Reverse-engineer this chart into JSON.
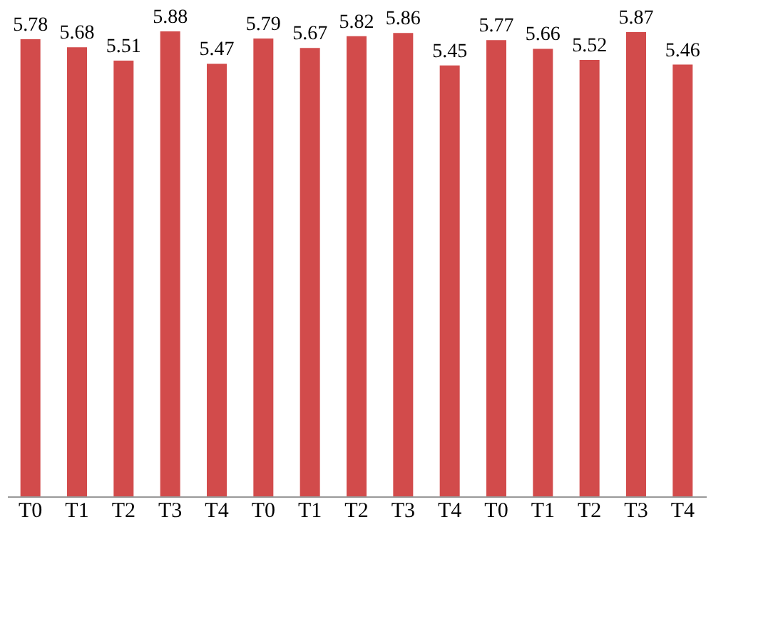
{
  "chart_data": {
    "type": "bar",
    "categories": [
      "T0",
      "T1",
      "T2",
      "T3",
      "T4",
      "T0",
      "T1",
      "T2",
      "T3",
      "T4",
      "T0",
      "T1",
      "T2",
      "T3",
      "T4"
    ],
    "values": [
      5.78,
      5.68,
      5.51,
      5.88,
      5.47,
      5.79,
      5.67,
      5.82,
      5.86,
      5.45,
      5.77,
      5.66,
      5.52,
      5.87,
      5.46
    ],
    "color": "#d24b4b",
    "data_labels": true,
    "grid": false
  }
}
